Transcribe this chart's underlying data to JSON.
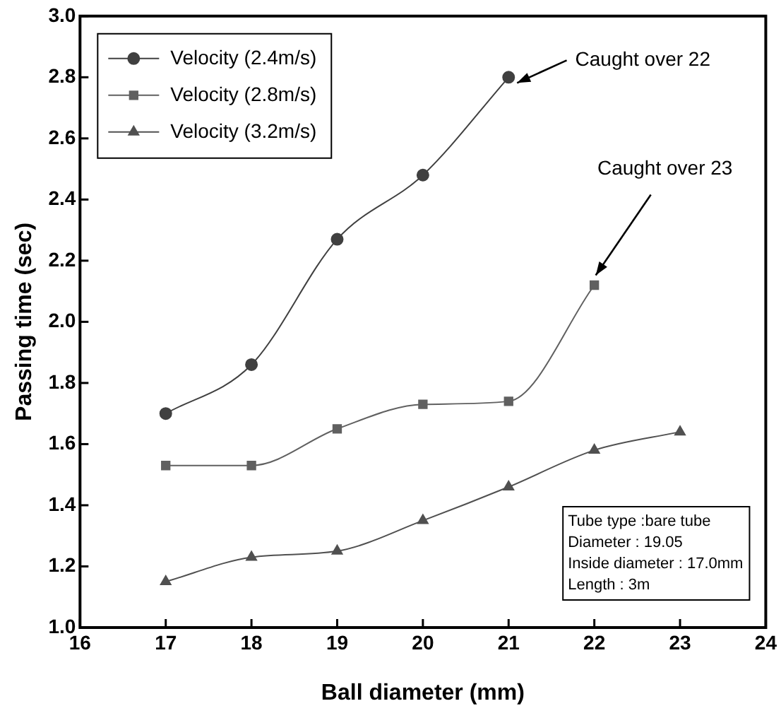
{
  "chart_data": {
    "type": "line",
    "xlabel": "Ball diameter (mm)",
    "ylabel": "Passing time (sec)",
    "xlim": [
      16,
      24
    ],
    "xticks": [
      16,
      17,
      18,
      19,
      20,
      21,
      22,
      23,
      24
    ],
    "ylim": [
      1.0,
      3.0
    ],
    "yticks": [
      {
        "value": 1.0,
        "label": "1.0"
      },
      {
        "value": 1.2,
        "label": "1.2"
      },
      {
        "value": 1.4,
        "label": "1.4"
      },
      {
        "value": 1.6,
        "label": "1.6"
      },
      {
        "value": 1.8,
        "label": "1.8"
      },
      {
        "value": 2.0,
        "label": "2.0"
      },
      {
        "value": 2.2,
        "label": "2.2"
      },
      {
        "value": 2.4,
        "label": "2.4"
      },
      {
        "value": 2.6,
        "label": "2.6"
      },
      {
        "value": 2.8,
        "label": "2.8"
      },
      {
        "value": 3.0,
        "label": "3.0"
      }
    ],
    "grid": false,
    "legend": "top left",
    "line_style": "solid",
    "series": [
      {
        "name": "Velocity (2.4m/s)",
        "color": "#404040",
        "marker": "circle",
        "x": [
          17,
          18,
          19,
          20,
          21
        ],
        "values": [
          1.7,
          1.86,
          2.27,
          2.48,
          2.8
        ]
      },
      {
        "name": "Velocity (2.8m/s)",
        "color": "#606060",
        "marker": "square",
        "x": [
          17,
          18,
          19,
          20,
          21,
          22
        ],
        "values": [
          1.53,
          1.53,
          1.65,
          1.73,
          1.74,
          2.12
        ]
      },
      {
        "name": "Velocity (3.2m/s)",
        "color": "#505050",
        "marker": "triangle",
        "x": [
          17,
          18,
          19,
          20,
          21,
          22,
          23
        ],
        "values": [
          1.15,
          1.23,
          1.25,
          1.35,
          1.46,
          1.58,
          1.64
        ]
      }
    ],
    "annotations": [
      {
        "text": "Caught over 22",
        "x": 21,
        "y": 2.8
      },
      {
        "text": "Caught over 23",
        "x": 22,
        "y": 2.12
      },
      "Tube type :bare tube",
      "Diameter : 19.05",
      "Inside diameter : 17.0mm",
      "Length : 3m"
    ]
  }
}
